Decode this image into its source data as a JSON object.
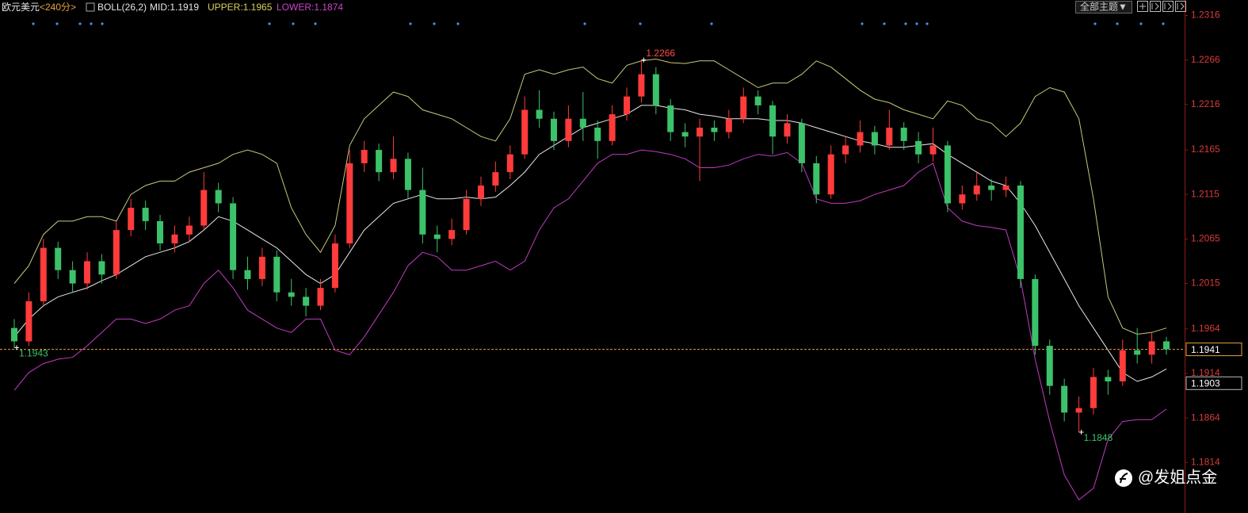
{
  "chart_data": {
    "type": "candlestick",
    "title": "欧元美元",
    "period": "<240分>",
    "indicator": "BOLL(26,2)",
    "mid_label": "MID:1.1919",
    "upper_label": "UPPER:1.1965",
    "lower_label": "LOWER:1.1874",
    "theme_button": "全部主题▼",
    "watermark": "@发姐点金",
    "up_color": "#ff3b3b",
    "down_color": "#3cc26a",
    "ylim": [
      1.1759,
      1.232
    ],
    "yticks": [
      1.2316,
      1.2266,
      1.2216,
      1.2165,
      1.2115,
      1.2065,
      1.2015,
      1.1964,
      1.1914,
      1.1864,
      1.1814
    ],
    "last_price": 1.1941,
    "marker_price": 1.1903,
    "open": [
      1.1965,
      1.195,
      1.1995,
      1.2055,
      1.203,
      1.2015,
      1.204,
      1.2025,
      1.2075,
      1.21,
      1.2085,
      1.206,
      1.207,
      1.208,
      1.212,
      1.2105,
      1.203,
      1.202,
      1.2045,
      1.2005,
      1.2,
      1.199,
      1.201,
      1.206,
      1.215,
      1.2165,
      1.214,
      1.2155,
      1.212,
      1.207,
      1.2065,
      1.2075,
      1.211,
      1.2125,
      1.214,
      1.216,
      1.221,
      1.22,
      1.2175,
      1.22,
      1.219,
      1.2175,
      1.2205,
      1.2225,
      1.225,
      1.2215,
      1.2185,
      1.218,
      1.219,
      1.2185,
      1.22,
      1.2225,
      1.2215,
      1.218,
      1.2195,
      1.215,
      1.2115,
      1.216,
      1.217,
      1.2185,
      1.217,
      1.219,
      1.2175,
      1.216,
      1.217,
      1.2105,
      1.2115,
      1.2125,
      1.212,
      1.2125,
      1.202,
      1.1945,
      1.19,
      1.187,
      1.1875,
      1.191,
      1.1905,
      1.194,
      1.1935,
      1.195
    ],
    "high": [
      1.1975,
      1.2005,
      1.2065,
      1.2062,
      1.204,
      1.205,
      1.2048,
      1.2085,
      1.211,
      1.2108,
      1.2092,
      1.208,
      1.209,
      1.214,
      1.2128,
      1.2112,
      1.2045,
      1.2055,
      1.2052,
      1.202,
      1.201,
      1.202,
      1.207,
      1.2165,
      1.2175,
      1.2172,
      1.218,
      1.2162,
      1.2145,
      1.208,
      1.2088,
      1.212,
      1.2135,
      1.2152,
      1.217,
      1.2225,
      1.2232,
      1.2208,
      1.2215,
      1.223,
      1.2198,
      1.2215,
      1.2235,
      1.2266,
      1.2258,
      1.2222,
      1.2195,
      1.22,
      1.2198,
      1.221,
      1.2235,
      1.2232,
      1.222,
      1.2205,
      1.22,
      1.2158,
      1.217,
      1.218,
      1.2198,
      1.2192,
      1.221,
      1.2196,
      1.2185,
      1.219,
      1.2175,
      1.2125,
      1.214,
      1.2132,
      1.2135,
      1.213,
      1.2025,
      1.1952,
      1.1908,
      1.1888,
      1.192,
      1.1918,
      1.1952,
      1.1965,
      1.196,
      1.1955
    ],
    "low": [
      1.1943,
      1.1945,
      1.199,
      1.202,
      1.2005,
      1.2008,
      1.2015,
      1.202,
      1.2068,
      1.2075,
      1.2052,
      1.205,
      1.2062,
      1.2075,
      1.2095,
      1.202,
      1.2008,
      1.2012,
      1.1995,
      1.199,
      1.1978,
      1.1985,
      1.2005,
      1.2055,
      1.214,
      1.213,
      1.2132,
      1.211,
      1.206,
      1.205,
      1.2058,
      1.207,
      1.2102,
      1.2118,
      1.2132,
      1.2155,
      1.219,
      1.2165,
      1.2168,
      1.2175,
      1.2155,
      1.217,
      1.2198,
      1.2218,
      1.2205,
      1.2175,
      1.2168,
      1.213,
      1.2175,
      1.2178,
      1.2195,
      1.2205,
      1.216,
      1.2172,
      1.214,
      1.2105,
      1.211,
      1.215,
      1.2162,
      1.216,
      1.2165,
      1.2165,
      1.215,
      1.2152,
      1.2095,
      1.2098,
      1.2108,
      1.2108,
      1.2112,
      1.201,
      1.1935,
      1.189,
      1.186,
      1.1848,
      1.1868,
      1.189,
      1.19,
      1.1925,
      1.1925,
      1.1935
    ],
    "close": [
      1.195,
      1.1995,
      1.2055,
      1.203,
      1.2015,
      1.204,
      1.2025,
      1.2075,
      1.21,
      1.2085,
      1.206,
      1.207,
      1.208,
      1.212,
      1.2105,
      1.203,
      1.202,
      1.2045,
      1.2005,
      1.2,
      1.199,
      1.201,
      1.206,
      1.215,
      1.2165,
      1.214,
      1.2155,
      1.212,
      1.207,
      1.2065,
      1.2075,
      1.211,
      1.2125,
      1.214,
      1.216,
      1.221,
      1.22,
      1.2175,
      1.22,
      1.219,
      1.2175,
      1.2205,
      1.2225,
      1.225,
      1.2215,
      1.2185,
      1.218,
      1.219,
      1.2185,
      1.22,
      1.2225,
      1.2215,
      1.218,
      1.2195,
      1.215,
      1.2115,
      1.216,
      1.217,
      1.2185,
      1.217,
      1.219,
      1.2175,
      1.216,
      1.217,
      1.2105,
      1.2115,
      1.2125,
      1.212,
      1.2125,
      1.202,
      1.1945,
      1.19,
      1.187,
      1.1875,
      1.191,
      1.1905,
      1.194,
      1.1935,
      1.195,
      1.1941
    ],
    "series": [
      {
        "color": "#c9c97a",
        "values": [
          1.2015,
          1.2035,
          1.207,
          1.2085,
          1.2085,
          1.209,
          1.209,
          1.2085,
          1.2115,
          1.2125,
          1.213,
          1.213,
          1.214,
          1.2145,
          1.215,
          1.216,
          1.2165,
          1.216,
          1.215,
          1.21,
          1.207,
          1.205,
          1.208,
          1.217,
          1.22,
          1.2215,
          1.223,
          1.2225,
          1.221,
          1.2205,
          1.22,
          1.219,
          1.218,
          1.2175,
          1.22,
          1.225,
          1.2255,
          1.225,
          1.2255,
          1.2258,
          1.2245,
          1.224,
          1.226,
          1.2265,
          1.2267,
          1.2263,
          1.2262,
          1.2265,
          1.2265,
          1.2255,
          1.2245,
          1.2235,
          1.224,
          1.224,
          1.225,
          1.2265,
          1.2258,
          1.2245,
          1.2232,
          1.2222,
          1.2218,
          1.221,
          1.2205,
          1.22,
          1.222,
          1.2215,
          1.22,
          1.2195,
          1.218,
          1.2195,
          1.2225,
          1.2235,
          1.223,
          1.22,
          1.211,
          1.2,
          1.1965,
          1.1958,
          1.196,
          1.1965
        ]
      },
      {
        "color": "#e8e8e8",
        "values": [
          1.1955,
          1.1975,
          1.199,
          1.2,
          1.2005,
          1.201,
          1.2018,
          1.2025,
          1.2035,
          1.2045,
          1.205,
          1.2055,
          1.2062,
          1.2075,
          1.209,
          1.2085,
          1.2075,
          1.2065,
          1.2055,
          1.204,
          1.2025,
          1.2015,
          1.2025,
          1.205,
          1.2075,
          1.209,
          1.2105,
          1.211,
          1.2115,
          1.211,
          1.211,
          1.2112,
          1.211,
          1.2112,
          1.2125,
          1.214,
          1.216,
          1.217,
          1.218,
          1.219,
          1.2195,
          1.22,
          1.2205,
          1.2215,
          1.2215,
          1.2212,
          1.221,
          1.2205,
          1.2203,
          1.22,
          1.22,
          1.22,
          1.2198,
          1.2198,
          1.2195,
          1.219,
          1.2185,
          1.218,
          1.2175,
          1.2172,
          1.2168,
          1.2168,
          1.217,
          1.2172,
          1.216,
          1.215,
          1.214,
          1.213,
          1.2125,
          1.2105,
          1.208,
          1.205,
          1.202,
          1.199,
          1.1965,
          1.194,
          1.1915,
          1.1905,
          1.191,
          1.1919
        ]
      },
      {
        "color": "#c23bc2",
        "values": [
          1.1895,
          1.1915,
          1.1925,
          1.193,
          1.1932,
          1.1945,
          1.196,
          1.1975,
          1.1975,
          1.197,
          1.1975,
          1.1985,
          1.199,
          1.2015,
          1.203,
          1.201,
          1.1985,
          1.1975,
          1.1965,
          1.196,
          1.1975,
          1.1975,
          1.194,
          1.1935,
          1.1955,
          1.198,
          1.2005,
          1.2035,
          1.205,
          1.2045,
          1.203,
          1.203,
          1.2035,
          1.204,
          1.203,
          1.204,
          1.2075,
          1.21,
          1.211,
          1.213,
          1.215,
          1.216,
          1.216,
          1.2165,
          1.2163,
          1.216,
          1.2155,
          1.2145,
          1.2145,
          1.2148,
          1.2155,
          1.216,
          1.2158,
          1.2162,
          1.215,
          1.211,
          1.2105,
          1.2105,
          1.2108,
          1.2115,
          1.212,
          1.2125,
          1.214,
          1.215,
          1.21,
          1.2085,
          1.208,
          1.2078,
          1.2075,
          1.202,
          1.193,
          1.186,
          1.18,
          1.1772,
          1.1785,
          1.184,
          1.186,
          1.1862,
          1.1862,
          1.1874
        ]
      }
    ]
  }
}
